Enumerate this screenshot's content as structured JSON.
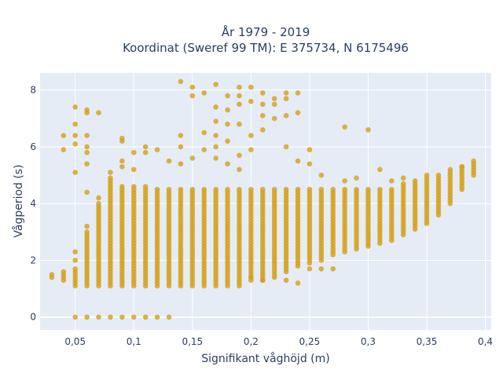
{
  "chart_data": {
    "type": "scatter",
    "title_line1": "År 1979 - 2019",
    "title_line2": "Koordinat (Sweref 99 TM): E 375734, N 6175496",
    "xlabel": "Signifikant våghöjd (m)",
    "ylabel": "Vågperiod (s)",
    "xlim": [
      0.02,
      0.405
    ],
    "ylim": [
      -0.45,
      8.6
    ],
    "x_ticks": [
      0.05,
      0.1,
      0.15,
      0.2,
      0.25,
      0.3,
      0.35,
      0.4
    ],
    "x_tick_labels": [
      "0,05",
      "0,1",
      "0,15",
      "0,2",
      "0,25",
      "0,3",
      "0,35",
      "0,4"
    ],
    "y_ticks": [
      0,
      2,
      4,
      6,
      8
    ],
    "y_tick_labels": [
      "0",
      "2",
      "4",
      "6",
      "8"
    ],
    "grid": true,
    "colors": {
      "marker": "#D4A017",
      "plot_bg": "#E5ECF6",
      "text": "#2a3f5f"
    },
    "columns": [
      {
        "x": 0.03,
        "y_min": 1.4,
        "y_max": 1.5
      },
      {
        "x": 0.04,
        "y_min": 1.3,
        "y_max": 1.6
      },
      {
        "x": 0.05,
        "y_min": 1.1,
        "y_max": 1.7
      },
      {
        "x": 0.06,
        "y_min": 1.1,
        "y_max": 3.0
      },
      {
        "x": 0.07,
        "y_min": 1.1,
        "y_max": 4.0
      },
      {
        "x": 0.08,
        "y_min": 1.1,
        "y_max": 4.9
      },
      {
        "x": 0.09,
        "y_min": 1.1,
        "y_max": 4.6
      },
      {
        "x": 0.1,
        "y_min": 1.1,
        "y_max": 4.6
      },
      {
        "x": 0.11,
        "y_min": 1.1,
        "y_max": 4.6
      },
      {
        "x": 0.12,
        "y_min": 1.1,
        "y_max": 4.5
      },
      {
        "x": 0.13,
        "y_min": 1.1,
        "y_max": 4.5
      },
      {
        "x": 0.14,
        "y_min": 1.1,
        "y_max": 4.5
      },
      {
        "x": 0.15,
        "y_min": 1.1,
        "y_max": 4.5
      },
      {
        "x": 0.16,
        "y_min": 1.1,
        "y_max": 4.5
      },
      {
        "x": 0.17,
        "y_min": 1.1,
        "y_max": 4.5
      },
      {
        "x": 0.18,
        "y_min": 1.1,
        "y_max": 4.5
      },
      {
        "x": 0.19,
        "y_min": 1.1,
        "y_max": 4.5
      },
      {
        "x": 0.2,
        "y_min": 1.3,
        "y_max": 4.5
      },
      {
        "x": 0.21,
        "y_min": 1.3,
        "y_max": 4.5
      },
      {
        "x": 0.22,
        "y_min": 1.5,
        "y_max": 4.5
      },
      {
        "x": 0.23,
        "y_min": 1.6,
        "y_max": 4.5
      },
      {
        "x": 0.24,
        "y_min": 1.8,
        "y_max": 4.5
      },
      {
        "x": 0.25,
        "y_min": 1.9,
        "y_max": 4.5
      },
      {
        "x": 0.26,
        "y_min": 2.0,
        "y_max": 4.5
      },
      {
        "x": 0.27,
        "y_min": 2.2,
        "y_max": 4.5
      },
      {
        "x": 0.28,
        "y_min": 2.3,
        "y_max": 4.5
      },
      {
        "x": 0.29,
        "y_min": 2.4,
        "y_max": 4.5
      },
      {
        "x": 0.3,
        "y_min": 2.5,
        "y_max": 4.5
      },
      {
        "x": 0.31,
        "y_min": 2.6,
        "y_max": 4.5
      },
      {
        "x": 0.32,
        "y_min": 2.7,
        "y_max": 4.5
      },
      {
        "x": 0.33,
        "y_min": 2.9,
        "y_max": 4.7
      },
      {
        "x": 0.34,
        "y_min": 3.1,
        "y_max": 4.8
      },
      {
        "x": 0.35,
        "y_min": 3.3,
        "y_max": 4.9
      },
      {
        "x": 0.36,
        "y_min": 3.6,
        "y_max": 5.0
      },
      {
        "x": 0.37,
        "y_min": 4.0,
        "y_max": 5.1
      },
      {
        "x": 0.38,
        "y_min": 4.5,
        "y_max": 5.3
      },
      {
        "x": 0.39,
        "y_min": 5.0,
        "y_max": 5.4
      }
    ],
    "points": [
      [
        0.05,
        0
      ],
      [
        0.06,
        0
      ],
      [
        0.07,
        0
      ],
      [
        0.08,
        0
      ],
      [
        0.09,
        0
      ],
      [
        0.1,
        0
      ],
      [
        0.11,
        0
      ],
      [
        0.12,
        0
      ],
      [
        0.13,
        0
      ],
      [
        0.05,
        2.0
      ],
      [
        0.05,
        2.3
      ],
      [
        0.06,
        3.2
      ],
      [
        0.06,
        4.4
      ],
      [
        0.07,
        4.2
      ],
      [
        0.04,
        5.9
      ],
      [
        0.04,
        6.4
      ],
      [
        0.05,
        5.1
      ],
      [
        0.05,
        6.1
      ],
      [
        0.05,
        6.4
      ],
      [
        0.05,
        6.8
      ],
      [
        0.05,
        7.4
      ],
      [
        0.06,
        5.4
      ],
      [
        0.06,
        5.8
      ],
      [
        0.06,
        6.0
      ],
      [
        0.06,
        6.4
      ],
      [
        0.06,
        7.2
      ],
      [
        0.06,
        7.3
      ],
      [
        0.07,
        7.2
      ],
      [
        0.08,
        5.1
      ],
      [
        0.09,
        5.3
      ],
      [
        0.09,
        5.5
      ],
      [
        0.09,
        6.2
      ],
      [
        0.09,
        6.3
      ],
      [
        0.1,
        5.2
      ],
      [
        0.1,
        5.8
      ],
      [
        0.11,
        5.8
      ],
      [
        0.11,
        6.0
      ],
      [
        0.12,
        5.9
      ],
      [
        0.13,
        5.5
      ],
      [
        0.14,
        5.4
      ],
      [
        0.14,
        6.0
      ],
      [
        0.14,
        6.4
      ],
      [
        0.14,
        8.3
      ],
      [
        0.15,
        7.8
      ],
      [
        0.15,
        8.1
      ],
      [
        0.15,
        5.6
      ],
      [
        0.16,
        6.5
      ],
      [
        0.16,
        7.9
      ],
      [
        0.16,
        5.9
      ],
      [
        0.17,
        8.2
      ],
      [
        0.17,
        7.4
      ],
      [
        0.17,
        6.9
      ],
      [
        0.17,
        6.4
      ],
      [
        0.17,
        6.0
      ],
      [
        0.17,
        5.6
      ],
      [
        0.18,
        7.8
      ],
      [
        0.18,
        7.3
      ],
      [
        0.18,
        6.8
      ],
      [
        0.18,
        6.2
      ],
      [
        0.18,
        5.4
      ],
      [
        0.19,
        8.1
      ],
      [
        0.19,
        7.8
      ],
      [
        0.19,
        7.5
      ],
      [
        0.19,
        6.8
      ],
      [
        0.19,
        5.7
      ],
      [
        0.19,
        5.2
      ],
      [
        0.2,
        8.1
      ],
      [
        0.2,
        7.6
      ],
      [
        0.2,
        6.4
      ],
      [
        0.2,
        5.9
      ],
      [
        0.21,
        7.9
      ],
      [
        0.21,
        7.5
      ],
      [
        0.21,
        7.1
      ],
      [
        0.21,
        6.6
      ],
      [
        0.22,
        7.7
      ],
      [
        0.22,
        7.5
      ],
      [
        0.22,
        7.0
      ],
      [
        0.23,
        7.9
      ],
      [
        0.23,
        7.7
      ],
      [
        0.23,
        7.1
      ],
      [
        0.23,
        6.0
      ],
      [
        0.24,
        7.9
      ],
      [
        0.24,
        7.2
      ],
      [
        0.24,
        5.5
      ],
      [
        0.25,
        5.9
      ],
      [
        0.25,
        5.4
      ],
      [
        0.26,
        5.0
      ],
      [
        0.28,
        6.7
      ],
      [
        0.28,
        4.8
      ],
      [
        0.29,
        4.9
      ],
      [
        0.3,
        6.6
      ],
      [
        0.31,
        5.2
      ],
      [
        0.32,
        4.8
      ],
      [
        0.33,
        4.9
      ],
      [
        0.35,
        5.0
      ],
      [
        0.37,
        5.2
      ],
      [
        0.38,
        5.3
      ],
      [
        0.39,
        5.5
      ],
      [
        0.2,
        1.4
      ],
      [
        0.21,
        1.3
      ],
      [
        0.22,
        1.4
      ],
      [
        0.23,
        1.3
      ],
      [
        0.24,
        1.2
      ],
      [
        0.25,
        1.7
      ],
      [
        0.26,
        1.7
      ],
      [
        0.27,
        1.7
      ]
    ]
  }
}
